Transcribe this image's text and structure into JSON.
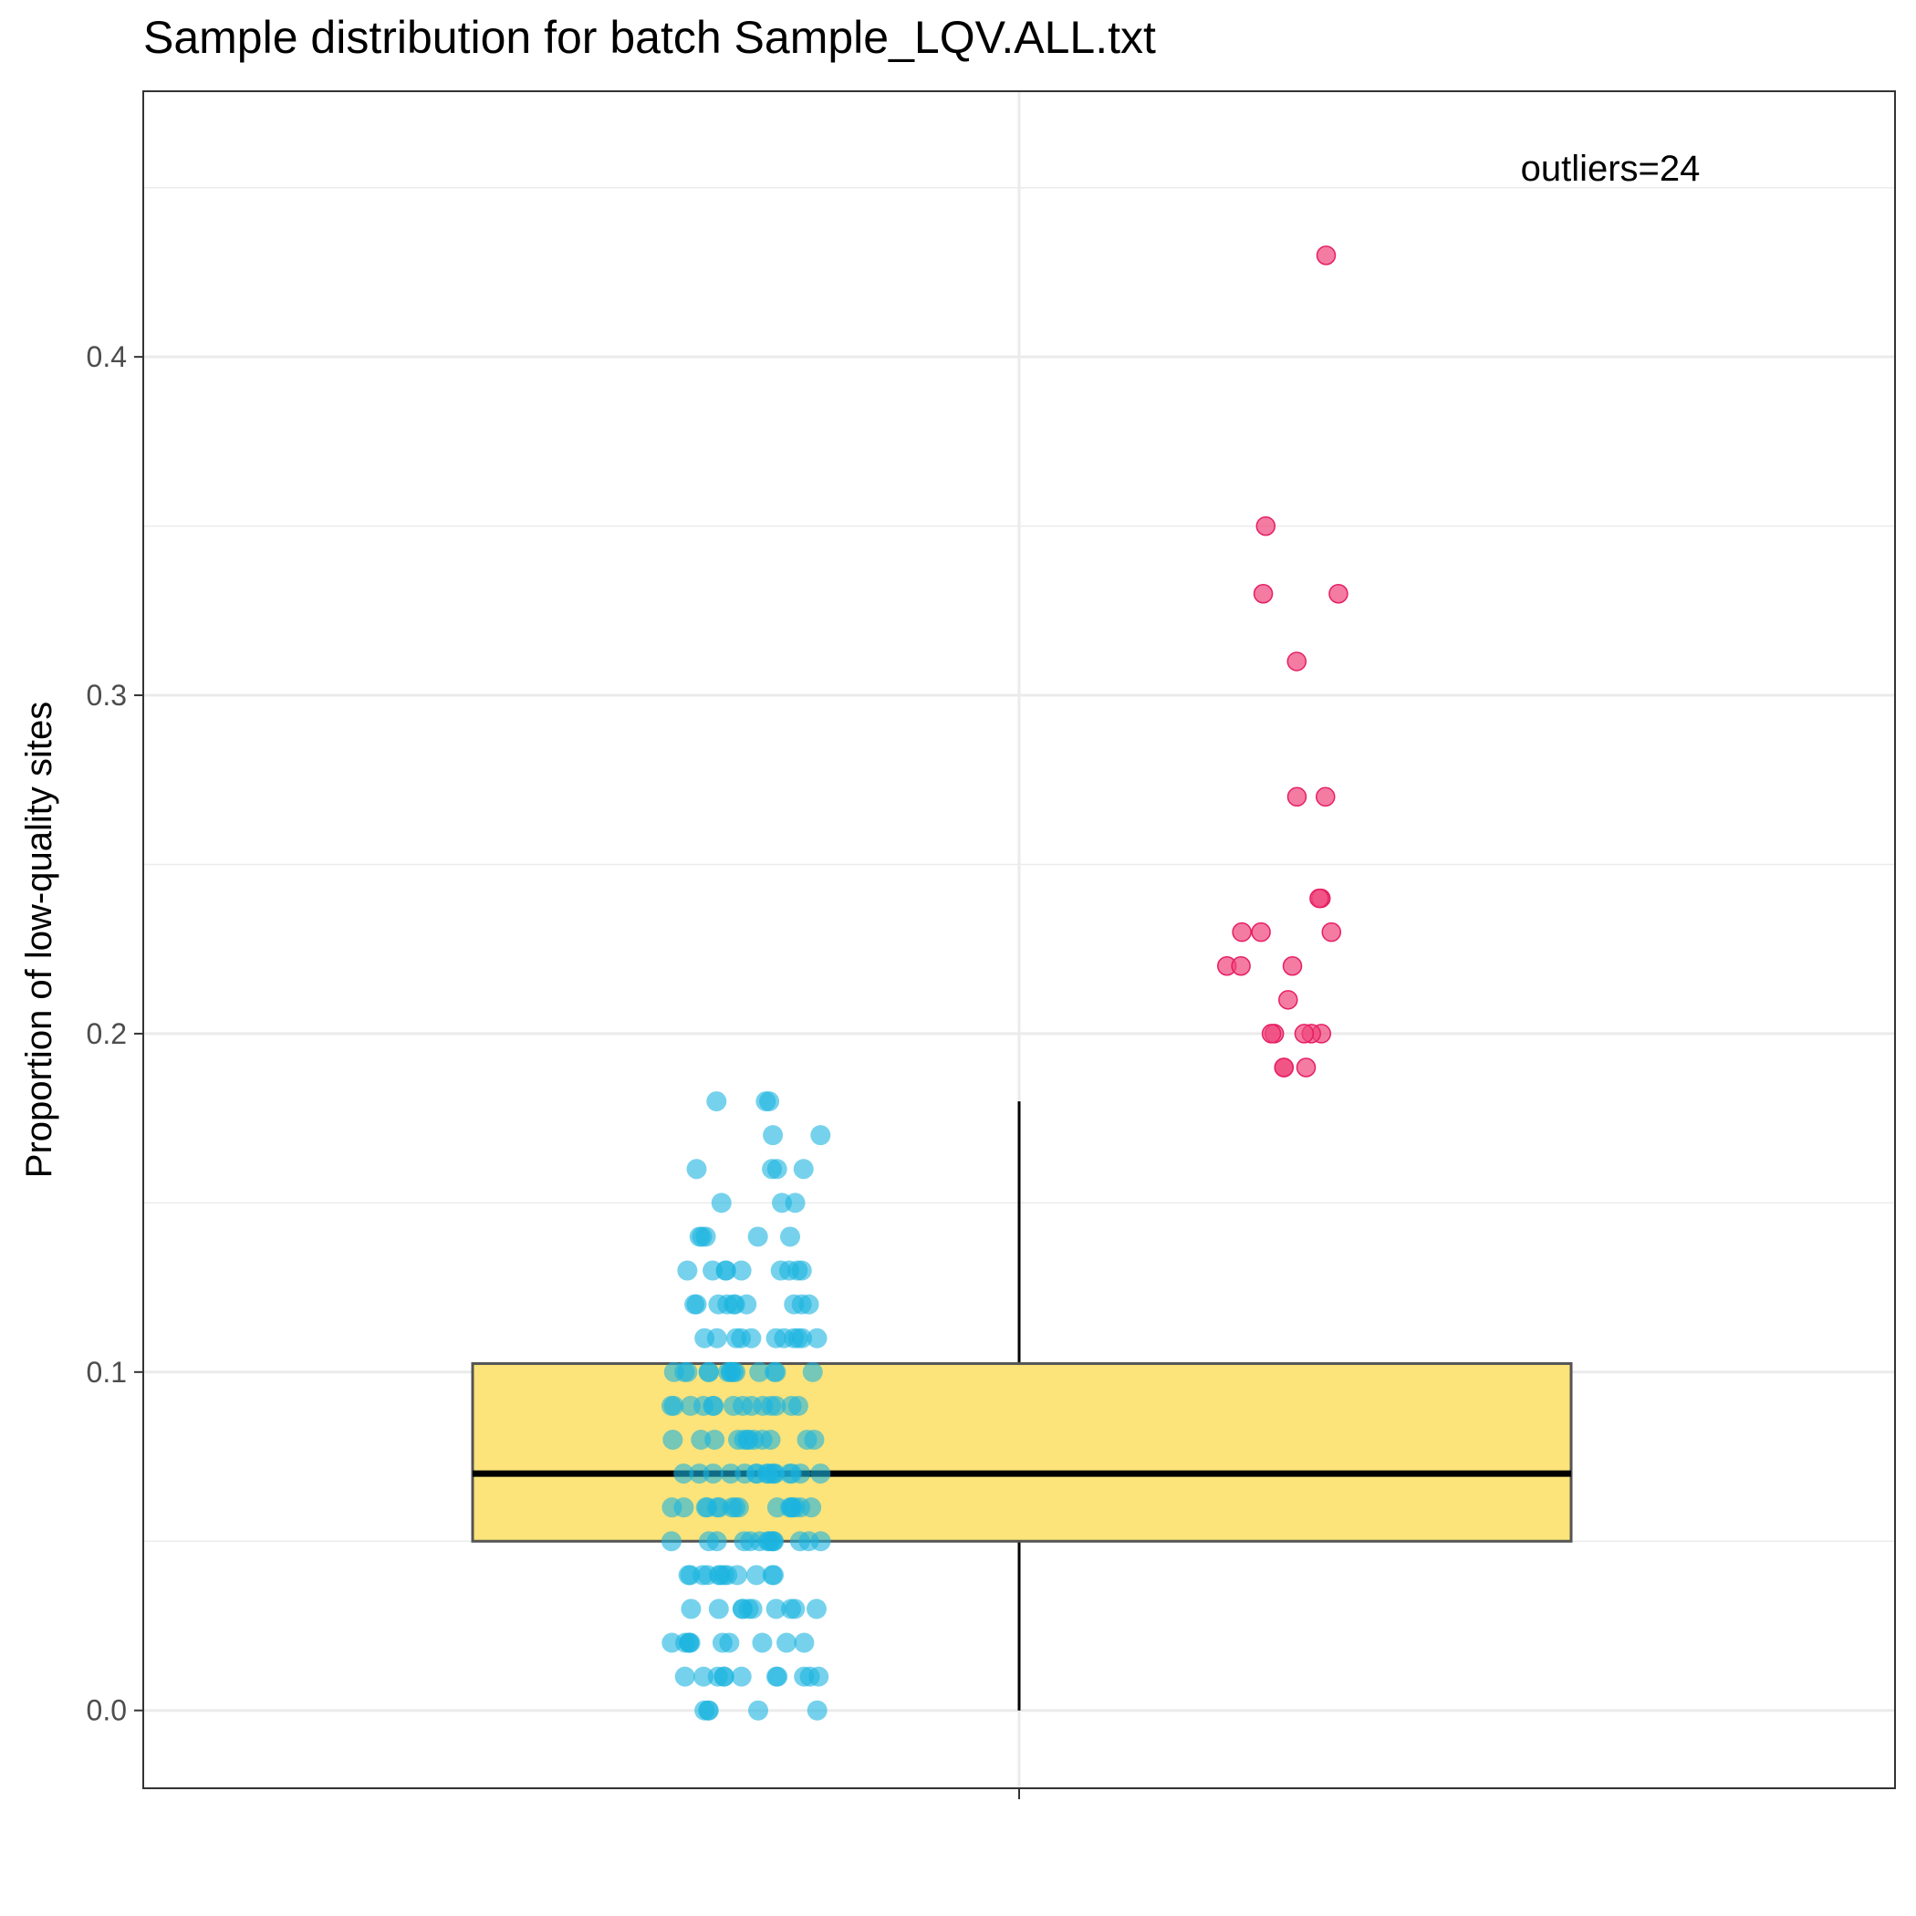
{
  "chart_data": {
    "type": "box",
    "title": "Sample distribution for batch Sample_LQV.ALL.txt",
    "ylabel": "Proportion of low-quality sites",
    "xlabel": "",
    "ylim": [
      -0.023,
      0.4785
    ],
    "yticks": [
      0.0,
      0.1,
      0.2,
      0.3,
      0.4
    ],
    "ytick_labels": [
      "0.0",
      "0.1",
      "0.2",
      "0.3",
      "0.4"
    ],
    "grid": true,
    "box": {
      "min": 0.0,
      "q1": 0.05,
      "median": 0.07,
      "q3": 0.1025,
      "max": 0.18,
      "fill": "#fce37a",
      "edge": "#555555"
    },
    "annotation": "outliers=24",
    "series": [
      {
        "role": "normal",
        "color": "#1ab4e0",
        "values": [
          0.18,
          0.18,
          0.18,
          0.17,
          0.17,
          0.16,
          0.16,
          0.16,
          0.16,
          0.15,
          0.15,
          0.15,
          0.14,
          0.14,
          0.14,
          0.14,
          0.14,
          0.13,
          0.13,
          0.13,
          0.13,
          0.13,
          0.13,
          0.13,
          0.13,
          0.13,
          0.12,
          0.12,
          0.12,
          0.12,
          0.12,
          0.12,
          0.12,
          0.12,
          0.12,
          0.12,
          0.11,
          0.11,
          0.11,
          0.11,
          0.11,
          0.11,
          0.11,
          0.11,
          0.11,
          0.11,
          0.11,
          0.1,
          0.1,
          0.1,
          0.1,
          0.1,
          0.1,
          0.1,
          0.1,
          0.1,
          0.1,
          0.1,
          0.1,
          0.1,
          0.1,
          0.09,
          0.09,
          0.09,
          0.09,
          0.09,
          0.09,
          0.09,
          0.09,
          0.09,
          0.09,
          0.09,
          0.09,
          0.09,
          0.09,
          0.08,
          0.08,
          0.08,
          0.08,
          0.08,
          0.08,
          0.08,
          0.08,
          0.08,
          0.08,
          0.08,
          0.08,
          0.07,
          0.07,
          0.07,
          0.07,
          0.07,
          0.07,
          0.07,
          0.07,
          0.07,
          0.07,
          0.07,
          0.07,
          0.07,
          0.07,
          0.07,
          0.07,
          0.06,
          0.06,
          0.06,
          0.06,
          0.06,
          0.06,
          0.06,
          0.06,
          0.06,
          0.06,
          0.06,
          0.06,
          0.06,
          0.06,
          0.06,
          0.06,
          0.05,
          0.05,
          0.05,
          0.05,
          0.05,
          0.05,
          0.05,
          0.05,
          0.05,
          0.05,
          0.05,
          0.05,
          0.05,
          0.05,
          0.04,
          0.04,
          0.04,
          0.04,
          0.04,
          0.04,
          0.04,
          0.04,
          0.04,
          0.04,
          0.04,
          0.04,
          0.03,
          0.03,
          0.03,
          0.03,
          0.03,
          0.03,
          0.03,
          0.03,
          0.03,
          0.03,
          0.02,
          0.02,
          0.02,
          0.02,
          0.02,
          0.02,
          0.02,
          0.02,
          0.02,
          0.02,
          0.01,
          0.01,
          0.01,
          0.01,
          0.01,
          0.01,
          0.01,
          0.01,
          0.01,
          0.01,
          0.01,
          0.0,
          0.0,
          0.0,
          0.0,
          0.0
        ]
      },
      {
        "role": "outlier",
        "color": "#f0457a",
        "values": [
          0.43,
          0.35,
          0.33,
          0.33,
          0.31,
          0.27,
          0.27,
          0.24,
          0.24,
          0.23,
          0.23,
          0.23,
          0.22,
          0.22,
          0.22,
          0.21,
          0.2,
          0.2,
          0.2,
          0.2,
          0.2,
          0.19,
          0.19,
          0.19
        ]
      }
    ]
  }
}
